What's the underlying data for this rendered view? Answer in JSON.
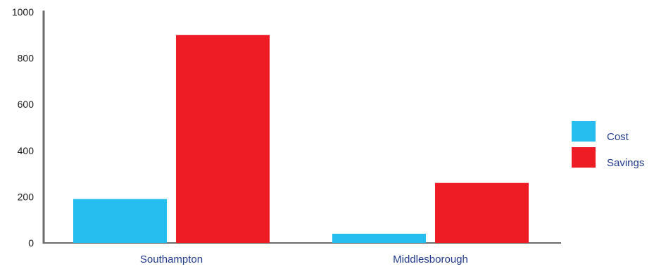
{
  "chart_data": {
    "type": "bar",
    "title": "",
    "xlabel": "",
    "ylabel": "",
    "categories": [
      "Southampton",
      "Middlesborough"
    ],
    "series": [
      {
        "name": "Cost",
        "values": [
          190,
          40
        ],
        "color": "#26bdef"
      },
      {
        "name": "Savings",
        "values": [
          900,
          260
        ],
        "color": "#ee1d25"
      }
    ],
    "ylim": [
      0,
      1000
    ],
    "yticks": [
      0,
      200,
      400,
      600,
      800,
      1000
    ],
    "ytick_labels": [
      "0",
      "200",
      "400",
      "600",
      "800",
      "1000"
    ],
    "grid": false,
    "legend_position": "right"
  }
}
